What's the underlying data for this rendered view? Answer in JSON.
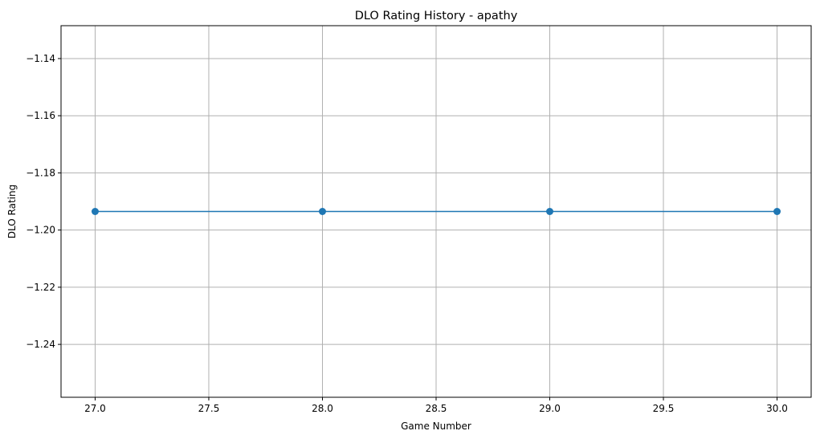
{
  "chart_data": {
    "type": "line",
    "title": "DLO Rating History - apathy",
    "xlabel": "Game Number",
    "ylabel": "DLO Rating",
    "x": [
      27,
      28,
      29,
      30
    ],
    "series": [
      {
        "values": [
          -1.1935,
          -1.1935,
          -1.1935,
          -1.1935
        ],
        "color": "#1f77b4",
        "marker": "circle"
      }
    ],
    "xlim": [
      26.85,
      30.15
    ],
    "ylim": [
      -1.2585,
      -1.1285
    ],
    "xticks": [
      27.0,
      27.5,
      28.0,
      28.5,
      29.0,
      29.5,
      30.0
    ],
    "xtick_labels": [
      "27.0",
      "27.5",
      "28.0",
      "28.5",
      "29.0",
      "29.5",
      "30.0"
    ],
    "yticks": [
      -1.14,
      -1.16,
      -1.18,
      -1.2,
      -1.22,
      -1.24
    ],
    "ytick_labels": [
      "−1.14",
      "−1.16",
      "−1.18",
      "−1.20",
      "−1.22",
      "−1.24"
    ],
    "grid": true,
    "legend": "none"
  }
}
